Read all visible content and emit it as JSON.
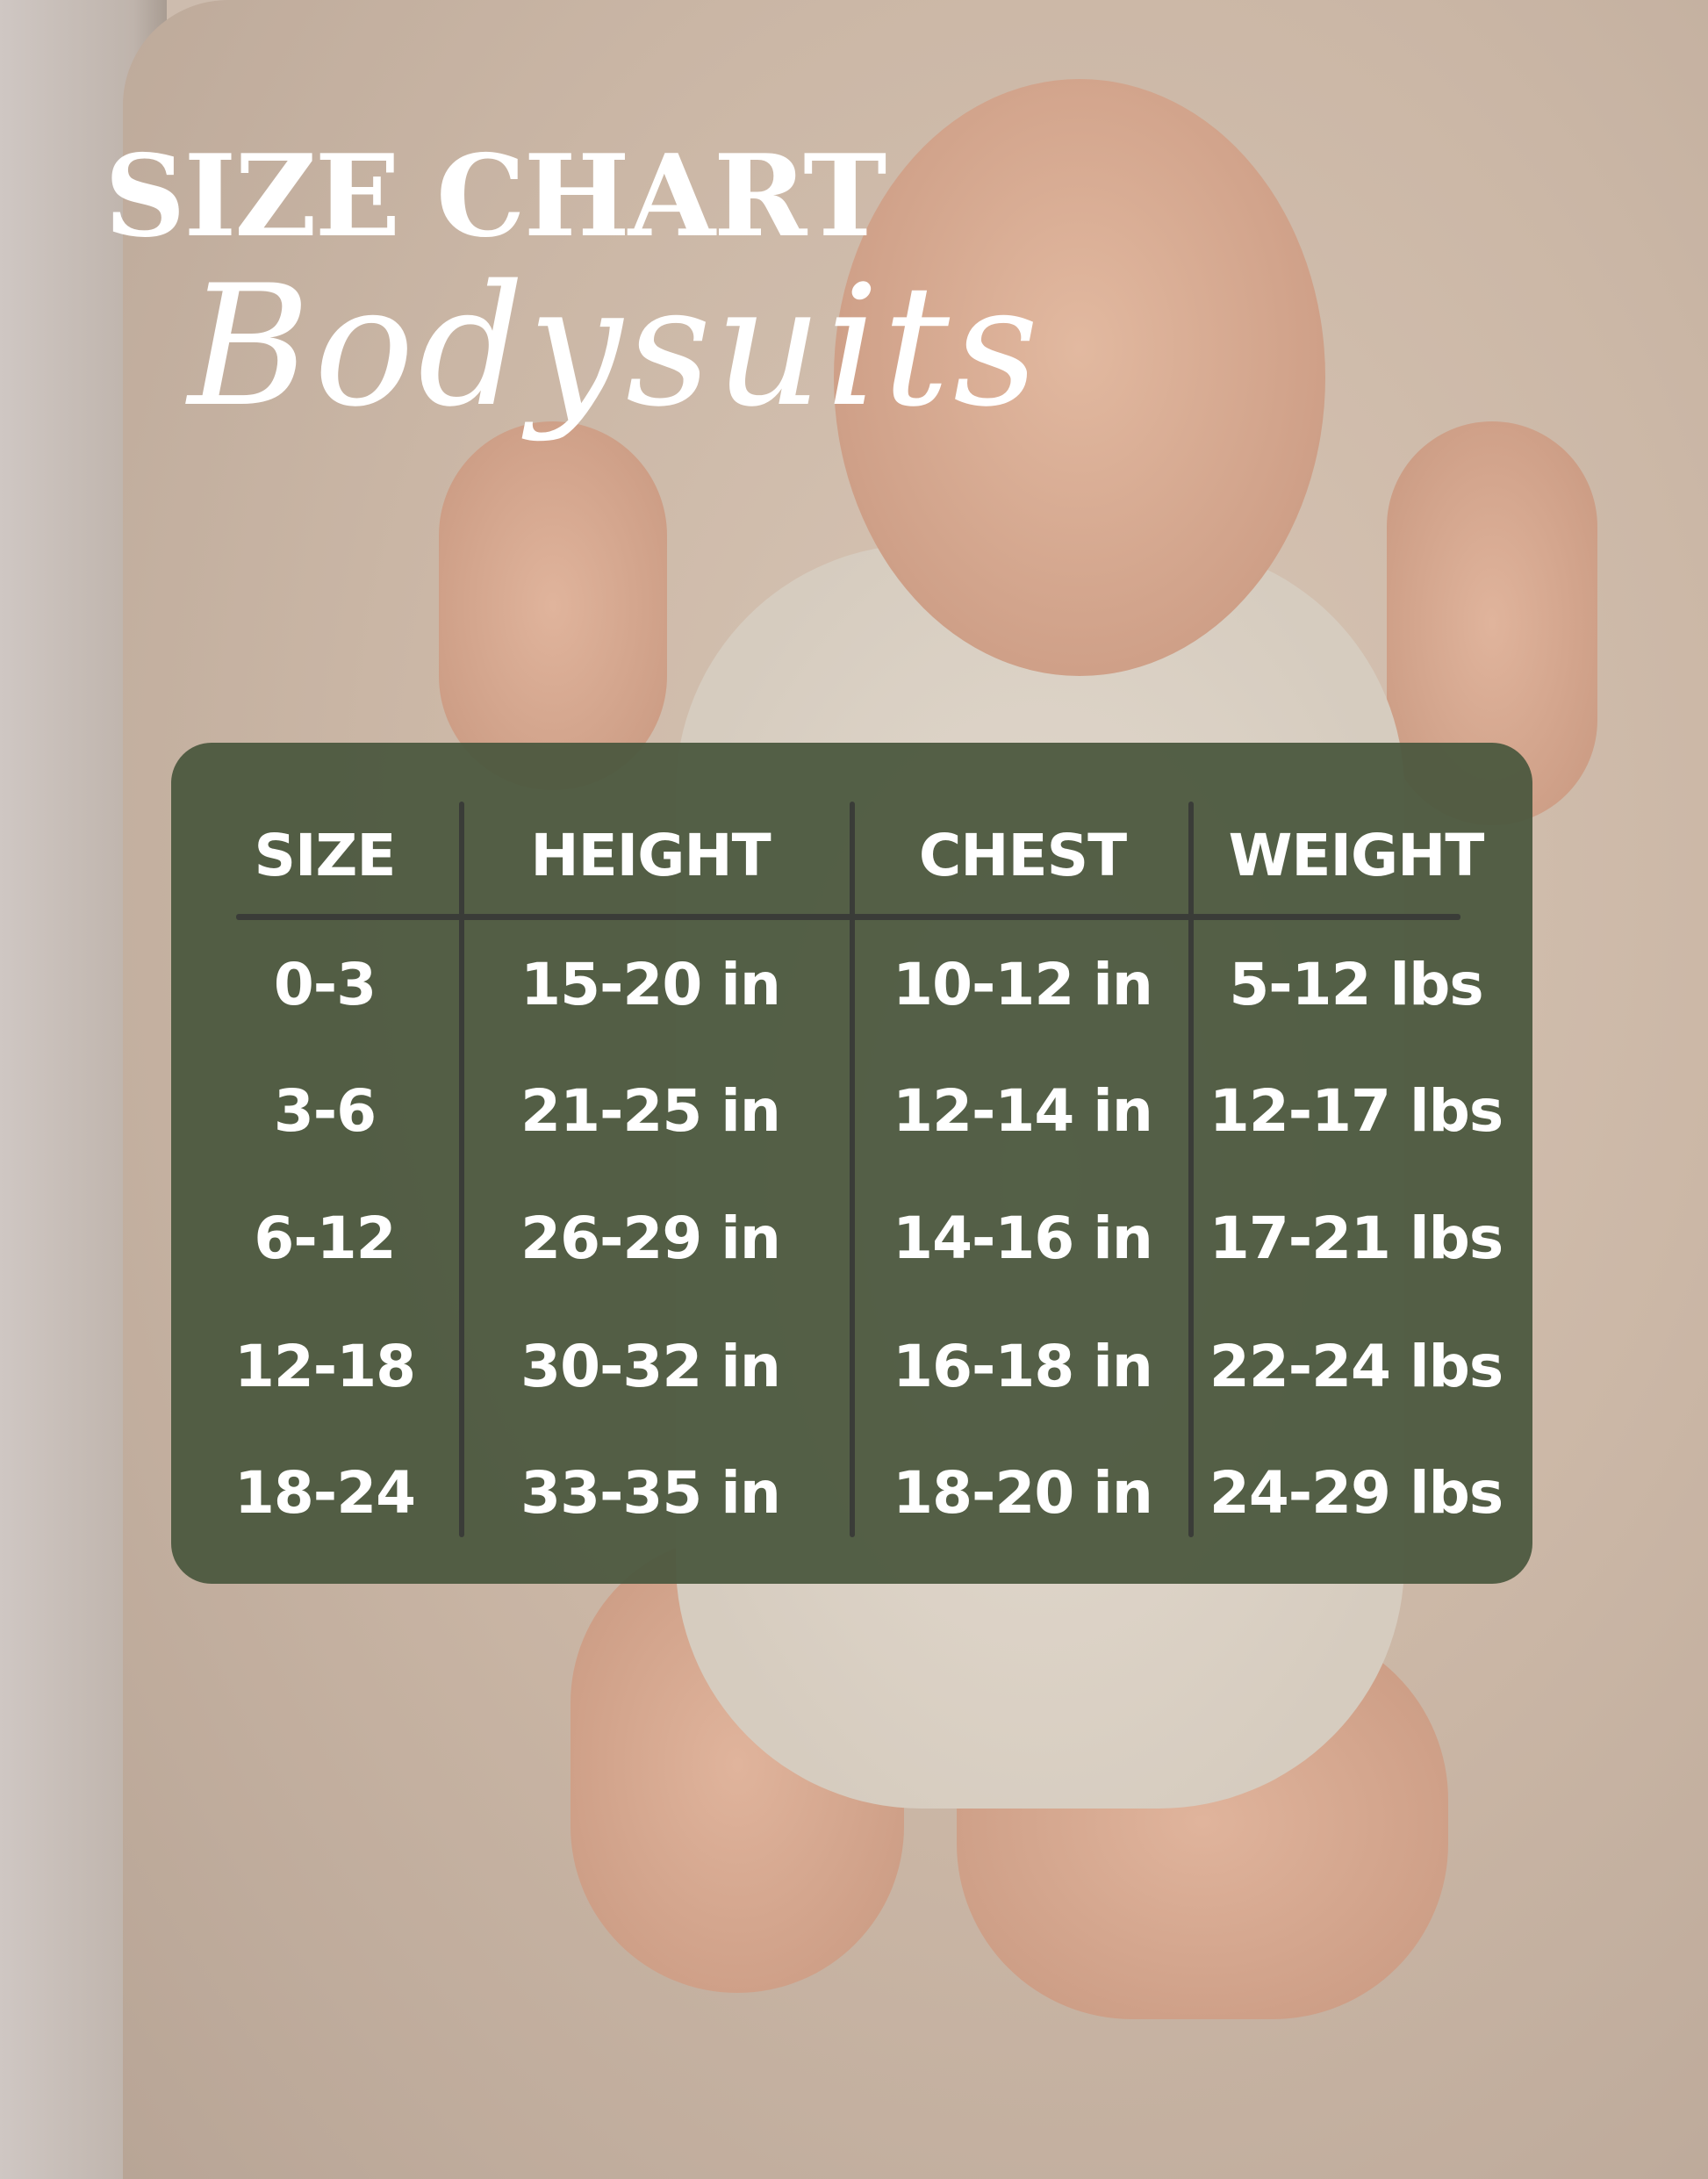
{
  "title": "SIZE CHART",
  "subtitle": "Bodysuits",
  "colors": {
    "panel": "#4c583f",
    "lines": "#3a3c38",
    "text": "#ffffff"
  },
  "table": {
    "headers": [
      "SIZE",
      "HEIGHT",
      "CHEST",
      "WEIGHT"
    ],
    "rows": [
      [
        "0-3",
        "15-20 in",
        "10-12 in",
        "5-12 lbs"
      ],
      [
        "3-6",
        "21-25 in",
        "12-14 in",
        "12-17 lbs"
      ],
      [
        "6-12",
        "26-29 in",
        "14-16 in",
        "17-21 lbs"
      ],
      [
        "12-18",
        "30-32 in",
        "16-18 in",
        "22-24 lbs"
      ],
      [
        "18-24",
        "33-35 in",
        "18-20 in",
        "24-29 lbs"
      ]
    ]
  }
}
